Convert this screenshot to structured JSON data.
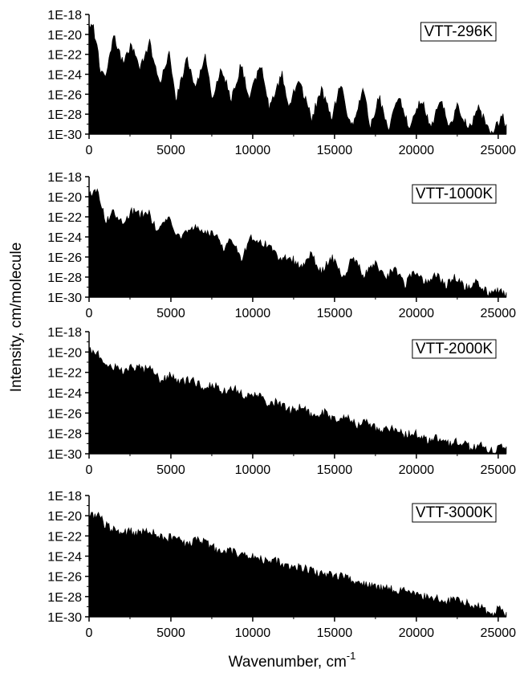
{
  "figure": {
    "ylabel": "Intensity, cm/molecule",
    "xlabel_main": "Wavenumber, cm",
    "xlabel_sup": "-1"
  },
  "colors": {
    "fill": "#000000",
    "background": "#ffffff"
  },
  "chart_data": [
    {
      "type": "area",
      "label": "VTT-296K",
      "log_y": true,
      "xlim": [
        0,
        25500
      ],
      "ylim": [
        1e-30,
        1e-18
      ],
      "x_ticks": [
        0,
        5000,
        10000,
        15000,
        20000,
        25000
      ],
      "y_ticks": [
        "1E-18",
        "1E-20",
        "1E-22",
        "1E-24",
        "1E-26",
        "1E-28",
        "1E-30"
      ],
      "envelope_x": [
        0,
        200,
        700,
        1000,
        1500,
        2100,
        2600,
        3100,
        3700,
        4300,
        4900,
        5300,
        6000,
        6500,
        7100,
        7500,
        8100,
        8700,
        9300,
        9800,
        10500,
        11000,
        11800,
        12200,
        12800,
        13600,
        14200,
        14800,
        15400,
        16000,
        16800,
        17200,
        17700,
        18300,
        18900,
        19600,
        20300,
        20900,
        21500,
        22000,
        22500,
        23200,
        23800,
        24600,
        25300,
        25500
      ],
      "envelope_y": [
        2e-19,
        5e-19,
        1e-23,
        2e-24,
        2e-20,
        3e-23,
        3e-21,
        1e-23,
        5e-21,
        2e-25,
        5e-22,
        1e-26,
        1e-22,
        1e-25,
        2e-22,
        1e-26,
        1e-23,
        1e-26,
        3e-23,
        1e-26,
        3e-23,
        1e-27,
        3e-24,
        1e-27,
        1e-24,
        1e-28,
        1e-25,
        1e-28,
        3e-25,
        1e-29,
        1e-25,
        1e-29,
        2e-26,
        1e-29,
        2e-26,
        1e-29,
        1e-26,
        1e-29,
        1e-26,
        1e-29,
        2e-27,
        1e-29,
        1e-27,
        3e-30,
        2e-28,
        1e-29
      ]
    },
    {
      "type": "area",
      "label": "VTT-1000K",
      "log_y": true,
      "xlim": [
        0,
        25500
      ],
      "ylim": [
        1e-30,
        1e-18
      ],
      "x_ticks": [
        0,
        5000,
        10000,
        15000,
        20000,
        25000
      ],
      "y_ticks": [
        "1E-18",
        "1E-20",
        "1E-22",
        "1E-24",
        "1E-26",
        "1E-28",
        "1E-30"
      ],
      "envelope_x": [
        0,
        500,
        1000,
        1500,
        2100,
        2600,
        3100,
        3600,
        4200,
        4900,
        5300,
        6000,
        6500,
        7100,
        7600,
        8200,
        8700,
        9300,
        9900,
        10400,
        11000,
        11700,
        12200,
        12900,
        13600,
        14200,
        14800,
        15500,
        16100,
        16800,
        17500,
        18100,
        18700,
        19300,
        19900,
        20500,
        21100,
        21800,
        22400,
        23000,
        23700,
        24400,
        25100,
        25500
      ],
      "envelope_y": [
        3e-20,
        2e-19,
        1e-22,
        1e-21,
        1e-22,
        1e-21,
        4e-22,
        1e-21,
        5e-24,
        5e-22,
        2e-24,
        5e-24,
        3e-23,
        5e-24,
        1e-23,
        2e-25,
        3e-24,
        2e-26,
        3e-24,
        1e-24,
        5e-25,
        1e-26,
        5e-26,
        2e-27,
        5e-26,
        1e-27,
        3e-26,
        2e-28,
        2e-26,
        5e-28,
        5e-27,
        2e-28,
        2e-27,
        5e-29,
        1e-27,
        1e-28,
        5e-28,
        5e-29,
        3e-28,
        2e-29,
        1e-28,
        5e-30,
        2e-29,
        3e-30
      ]
    },
    {
      "type": "area",
      "label": "VTT-2000K",
      "log_y": true,
      "xlim": [
        0,
        25500
      ],
      "ylim": [
        1e-30,
        1e-18
      ],
      "x_ticks": [
        0,
        5000,
        10000,
        15000,
        20000,
        25000
      ],
      "y_ticks": [
        "1E-18",
        "1E-20",
        "1E-22",
        "1E-24",
        "1E-26",
        "1E-28",
        "1E-30"
      ],
      "envelope_x": [
        0,
        400,
        1000,
        1600,
        2200,
        2700,
        3300,
        3800,
        4400,
        5000,
        5600,
        6300,
        7000,
        7600,
        8200,
        8800,
        9500,
        10200,
        10900,
        11600,
        12300,
        13000,
        13700,
        14400,
        15000,
        15700,
        16400,
        17100,
        17800,
        18500,
        19200,
        19900,
        20600,
        21300,
        22000,
        22700,
        23400,
        24100,
        24800,
        25200,
        25500
      ],
      "envelope_y": [
        5e-20,
        3e-20,
        3e-21,
        1e-21,
        3e-22,
        1e-21,
        5e-22,
        1e-21,
        3e-23,
        2e-22,
        3e-23,
        5e-23,
        1e-23,
        2e-23,
        3e-24,
        1e-23,
        1e-24,
        2e-24,
        3e-25,
        3e-25,
        5e-26,
        1e-25,
        1e-26,
        3e-26,
        5e-27,
        1e-26,
        2e-27,
        3e-27,
        5e-28,
        1e-27,
        2e-28,
        3e-28,
        5e-29,
        1e-28,
        3e-29,
        5e-29,
        1e-29,
        2e-29,
        3e-30,
        3e-29,
        5e-30
      ]
    },
    {
      "type": "area",
      "label": "VTT-3000K",
      "log_y": true,
      "xlim": [
        0,
        25500
      ],
      "ylim": [
        1e-30,
        1e-18
      ],
      "x_ticks": [
        0,
        5000,
        10000,
        15000,
        20000,
        25000
      ],
      "y_ticks": [
        "1E-18",
        "1E-20",
        "1E-22",
        "1E-24",
        "1E-26",
        "1E-28",
        "1E-30"
      ],
      "envelope_x": [
        0,
        500,
        1000,
        1500,
        2000,
        2500,
        3000,
        3500,
        4000,
        4600,
        5200,
        5800,
        6500,
        7200,
        7900,
        8600,
        9300,
        10000,
        10700,
        11400,
        12100,
        12800,
        13500,
        14200,
        14900,
        15600,
        16300,
        17000,
        17700,
        18400,
        19100,
        19800,
        20500,
        21200,
        21900,
        22600,
        23300,
        24000,
        24700,
        25100,
        25500
      ],
      "envelope_y": [
        2e-20,
        5e-20,
        3e-21,
        1e-21,
        5e-22,
        1e-21,
        5e-22,
        1e-21,
        5e-22,
        1e-22,
        3e-22,
        5e-23,
        1e-22,
        5e-23,
        1e-23,
        1e-23,
        3e-24,
        3e-24,
        1e-24,
        1e-24,
        3e-25,
        3e-25,
        1e-25,
        5e-26,
        3e-26,
        3e-26,
        5e-27,
        5e-27,
        2e-27,
        2e-27,
        1e-27,
        5e-28,
        3e-28,
        2e-28,
        1e-28,
        1e-28,
        5e-29,
        3e-29,
        2e-30,
        5e-29,
        3e-30
      ]
    }
  ]
}
